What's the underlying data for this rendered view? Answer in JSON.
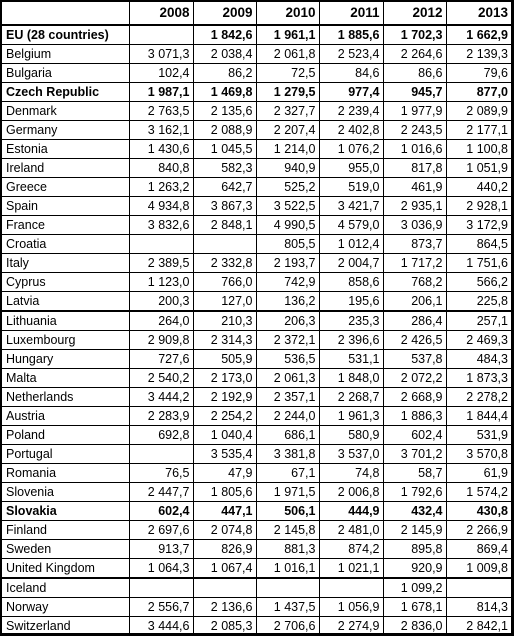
{
  "years": [
    "2008",
    "2009",
    "2010",
    "2011",
    "2012",
    "2013"
  ],
  "rows": [
    {
      "country": "EU (28 countries)",
      "values": [
        "",
        "1 842,6",
        "1 961,1",
        "1 885,6",
        "1 702,3",
        "1 662,9"
      ],
      "bold": true
    },
    {
      "country": "Belgium",
      "values": [
        "3 071,3",
        "2 038,4",
        "2 061,8",
        "2 523,4",
        "2 264,6",
        "2 139,3"
      ]
    },
    {
      "country": "Bulgaria",
      "values": [
        "102,4",
        "86,2",
        "72,5",
        "84,6",
        "86,6",
        "79,6"
      ]
    },
    {
      "country": "Czech Republic",
      "values": [
        "1 987,1",
        "1 469,8",
        "1 279,5",
        "977,4",
        "945,7",
        "877,0"
      ],
      "bold": true
    },
    {
      "country": "Denmark",
      "values": [
        "2 763,5",
        "2 135,6",
        "2 327,7",
        "2 239,4",
        "1 977,9",
        "2 089,9"
      ]
    },
    {
      "country": "Germany",
      "values": [
        "3 162,1",
        "2 088,9",
        "2 207,4",
        "2 402,8",
        "2 243,5",
        "2 177,1"
      ]
    },
    {
      "country": "Estonia",
      "values": [
        "1 430,6",
        "1 045,5",
        "1 214,0",
        "1 076,2",
        "1 016,6",
        "1 100,8"
      ]
    },
    {
      "country": "Ireland",
      "values": [
        "840,8",
        "582,3",
        "940,9",
        "955,0",
        "817,8",
        "1 051,9"
      ]
    },
    {
      "country": "Greece",
      "values": [
        "1 263,2",
        "642,7",
        "525,2",
        "519,0",
        "461,9",
        "440,2"
      ]
    },
    {
      "country": "Spain",
      "values": [
        "4 934,8",
        "3 867,3",
        "3 522,5",
        "3 421,7",
        "2 935,1",
        "2 928,1"
      ]
    },
    {
      "country": "France",
      "values": [
        "3 832,6",
        "2 848,1",
        "4 990,5",
        "4 579,0",
        "3 036,9",
        "3 172,9"
      ]
    },
    {
      "country": "Croatia",
      "values": [
        "",
        "",
        "805,5",
        "1 012,4",
        "873,7",
        "864,5"
      ]
    },
    {
      "country": "Italy",
      "values": [
        "2 389,5",
        "2 332,8",
        "2 193,7",
        "2 004,7",
        "1 717,2",
        "1 751,6"
      ]
    },
    {
      "country": "Cyprus",
      "values": [
        "1 123,0",
        "766,0",
        "742,9",
        "858,6",
        "768,2",
        "566,2"
      ]
    },
    {
      "country": "Latvia",
      "values": [
        "200,3",
        "127,0",
        "136,2",
        "195,6",
        "206,1",
        "225,8"
      ],
      "sep": true
    },
    {
      "country": "Lithuania",
      "values": [
        "264,0",
        "210,3",
        "206,3",
        "235,3",
        "286,4",
        "257,1"
      ]
    },
    {
      "country": "Luxembourg",
      "values": [
        "2 909,8",
        "2 314,3",
        "2 372,1",
        "2 396,6",
        "2 426,5",
        "2 469,3"
      ]
    },
    {
      "country": "Hungary",
      "values": [
        "727,6",
        "505,9",
        "536,5",
        "531,1",
        "537,8",
        "484,3"
      ]
    },
    {
      "country": "Malta",
      "values": [
        "2 540,2",
        "2 173,0",
        "2 061,3",
        "1 848,0",
        "2 072,2",
        "1 873,3"
      ]
    },
    {
      "country": "Netherlands",
      "values": [
        "3 444,2",
        "2 192,9",
        "2 357,1",
        "2 268,7",
        "2 668,9",
        "2 278,2"
      ]
    },
    {
      "country": "Austria",
      "values": [
        "2 283,9",
        "2 254,2",
        "2 244,0",
        "1 961,3",
        "1 886,3",
        "1 844,4"
      ]
    },
    {
      "country": "Poland",
      "values": [
        "692,8",
        "1 040,4",
        "686,1",
        "580,9",
        "602,4",
        "531,9"
      ]
    },
    {
      "country": "Portugal",
      "values": [
        "",
        "3 535,4",
        "3 381,8",
        "3 537,0",
        "3 701,2",
        "3 570,8"
      ]
    },
    {
      "country": "Romania",
      "values": [
        "76,5",
        "47,9",
        "67,1",
        "74,8",
        "58,7",
        "61,9"
      ]
    },
    {
      "country": "Slovenia",
      "values": [
        "2 447,7",
        "1 805,6",
        "1 971,5",
        "2 006,8",
        "1 792,6",
        "1 574,2"
      ]
    },
    {
      "country": "Slovakia",
      "values": [
        "602,4",
        "447,1",
        "506,1",
        "444,9",
        "432,4",
        "430,8"
      ],
      "bold": true
    },
    {
      "country": "Finland",
      "values": [
        "2 697,6",
        "2 074,8",
        "2 145,8",
        "2 481,0",
        "2 145,9",
        "2 266,9"
      ]
    },
    {
      "country": "Sweden",
      "values": [
        "913,7",
        "826,9",
        "881,3",
        "874,2",
        "895,8",
        "869,4"
      ]
    },
    {
      "country": "United Kingdom",
      "values": [
        "1 064,3",
        "1 067,4",
        "1 016,1",
        "1 021,1",
        "920,9",
        "1 009,8"
      ],
      "sep": true
    },
    {
      "country": "Iceland",
      "values": [
        "",
        "",
        "",
        "",
        "1 099,2",
        ""
      ]
    },
    {
      "country": "Norway",
      "values": [
        "2 556,7",
        "2 136,6",
        "1 437,5",
        "1 056,9",
        "1 678,1",
        "814,3"
      ]
    },
    {
      "country": "Switzerland",
      "values": [
        "3 444,6",
        "2 085,3",
        "2 706,6",
        "2 274,9",
        "2 836,0",
        "2 842,1"
      ]
    }
  ]
}
